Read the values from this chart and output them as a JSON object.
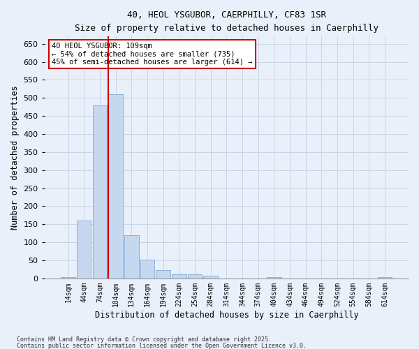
{
  "title_line1": "40, HEOL YSGUBOR, CAERPHILLY, CF83 1SR",
  "title_line2": "Size of property relative to detached houses in Caerphilly",
  "xlabel": "Distribution of detached houses by size in Caerphilly",
  "ylabel": "Number of detached properties",
  "categories": [
    "14sqm",
    "44sqm",
    "74sqm",
    "104sqm",
    "134sqm",
    "164sqm",
    "194sqm",
    "224sqm",
    "254sqm",
    "284sqm",
    "314sqm",
    "344sqm",
    "374sqm",
    "404sqm",
    "434sqm",
    "464sqm",
    "494sqm",
    "524sqm",
    "554sqm",
    "584sqm",
    "614sqm"
  ],
  "values": [
    3,
    160,
    480,
    510,
    120,
    52,
    22,
    12,
    11,
    8,
    0,
    0,
    0,
    3,
    0,
    0,
    0,
    0,
    0,
    0,
    3
  ],
  "bar_color": "#c5d8f0",
  "bar_edge_color": "#7baad4",
  "grid_color": "#c8d4e8",
  "background_color": "#eaf0fa",
  "red_line_index": 3,
  "annotation_text": "40 HEOL YSGUBOR: 109sqm\n← 54% of detached houses are smaller (735)\n45% of semi-detached houses are larger (614) →",
  "annotation_box_color": "#ffffff",
  "annotation_box_edge_color": "#cc0000",
  "property_line_color": "#cc0000",
  "ylim": [
    0,
    670
  ],
  "yticks": [
    0,
    50,
    100,
    150,
    200,
    250,
    300,
    350,
    400,
    450,
    500,
    550,
    600,
    650
  ],
  "footnote1": "Contains HM Land Registry data © Crown copyright and database right 2025.",
  "footnote2": "Contains public sector information licensed under the Open Government Licence v3.0."
}
